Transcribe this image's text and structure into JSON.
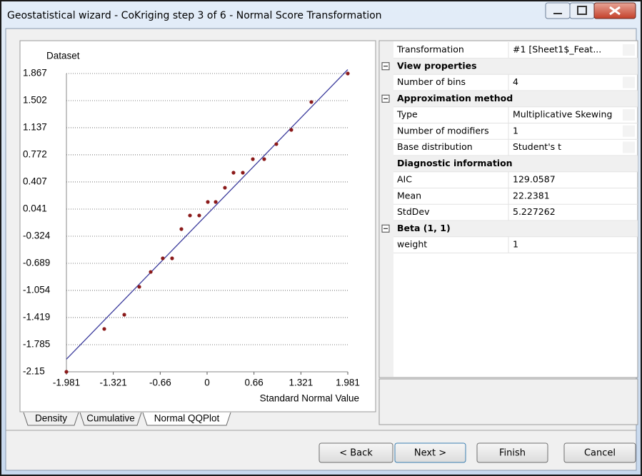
{
  "window": {
    "title": "Geostatistical wizard - CoKriging step 3 of 6 - Normal Score Transformation"
  },
  "chart_data": {
    "type": "scatter",
    "ylabel": "Dataset",
    "xlabel": "Standard Normal Value",
    "x": [
      -1.981,
      -1.448,
      -1.166,
      -0.955,
      -0.794,
      -0.624,
      -0.493,
      -0.362,
      -0.241,
      -0.111,
      0.01,
      0.121,
      0.251,
      0.372,
      0.503,
      0.644,
      0.804,
      0.975,
      1.186,
      1.468,
      1.981
    ],
    "values": [
      -2.15,
      -1.573,
      -1.381,
      -1.006,
      -0.805,
      -0.622,
      -0.622,
      -0.228,
      -0.045,
      -0.045,
      0.137,
      0.137,
      0.329,
      0.531,
      0.531,
      0.714,
      0.714,
      0.916,
      1.108,
      1.483,
      1.867
    ],
    "color": "#8b1a1a",
    "reference_line": {
      "x": [
        -1.981,
        1.981
      ],
      "y": [
        -1.98,
        1.92
      ],
      "color": "#3b3b9c"
    },
    "xlim": [
      -1.981,
      1.981
    ],
    "ylim": [
      -2.15,
      1.867
    ],
    "xticks": [
      -1.981,
      -1.321,
      -0.66,
      0,
      0.66,
      1.321,
      1.981
    ],
    "yticks": [
      1.867,
      1.502,
      1.137,
      0.772,
      0.407,
      0.041,
      -0.324,
      -0.689,
      -1.054,
      -1.419,
      -1.785,
      -2.15
    ],
    "grid": true
  },
  "tabs": [
    "Density",
    "Cumulative",
    "Normal QQPlot"
  ],
  "properties": {
    "top": {
      "label": "Transformation",
      "value": "#1 [Sheet1$_Feat..."
    },
    "groups": [
      {
        "title": "View properties",
        "rows": [
          {
            "label": "Number of bins",
            "value": 4
          }
        ]
      },
      {
        "title": "Approximation method",
        "rows": [
          {
            "label": "Type",
            "value": "Multiplicative Skewing"
          },
          {
            "label": "Number of modifiers",
            "value": 1
          },
          {
            "label": "Base distribution",
            "value": "Student's t"
          }
        ],
        "subsection": {
          "title": "Diagnostic information",
          "rows": [
            {
              "label": "AIC",
              "value": 129.0587
            },
            {
              "label": "Mean",
              "value": 22.2381
            },
            {
              "label": "StdDev",
              "value": 5.227262
            }
          ]
        }
      },
      {
        "title": "Beta (1, 1)",
        "rows": [
          {
            "label": "weight",
            "value": 1
          }
        ]
      }
    ]
  },
  "buttons": [
    "< Back",
    "Next >",
    "Finish",
    "Cancel"
  ]
}
